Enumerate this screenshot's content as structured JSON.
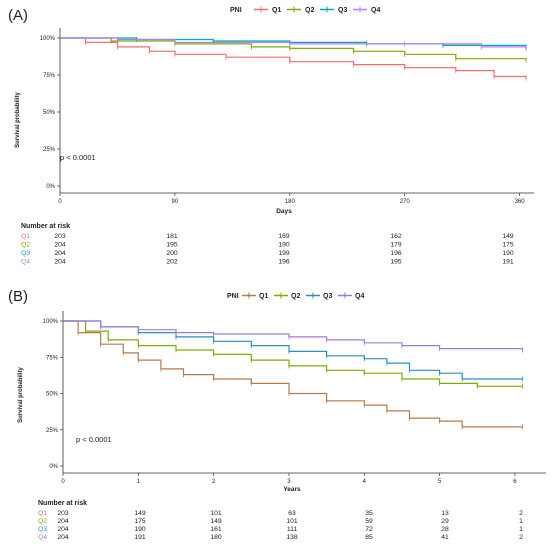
{
  "chart_data": [
    {
      "panel_label": "(A)",
      "type": "line",
      "subtype": "kaplan-meier",
      "legend_title": "PNI",
      "legend_position": "top",
      "xlabel": "Days",
      "ylabel": "Survival probability",
      "xlim": [
        0,
        365
      ],
      "ylim": [
        0,
        1
      ],
      "x_ticks": [
        "0",
        "90",
        "180",
        "270",
        "360"
      ],
      "y_ticks": [
        "0%",
        "25%",
        "50%",
        "75%",
        "100%"
      ],
      "annotation": "p < 0.0001",
      "series": [
        {
          "name": "Q1",
          "color": "#f26d6d",
          "x": [
            0,
            20,
            45,
            70,
            90,
            130,
            180,
            230,
            270,
            310,
            340,
            365
          ],
          "y": [
            1.0,
            0.97,
            0.94,
            0.91,
            0.89,
            0.87,
            0.84,
            0.82,
            0.8,
            0.78,
            0.74,
            0.73
          ]
        },
        {
          "name": "Q2",
          "color": "#7cae00",
          "x": [
            0,
            40,
            90,
            150,
            180,
            230,
            270,
            310,
            365
          ],
          "y": [
            1.0,
            0.98,
            0.96,
            0.94,
            0.93,
            0.91,
            0.89,
            0.86,
            0.85
          ]
        },
        {
          "name": "Q3",
          "color": "#00a9c0",
          "x": [
            0,
            60,
            120,
            180,
            240,
            300,
            365
          ],
          "y": [
            1.0,
            0.99,
            0.98,
            0.97,
            0.96,
            0.95,
            0.93
          ]
        },
        {
          "name": "Q4",
          "color": "#b67cf0",
          "x": [
            0,
            45,
            90,
            180,
            270,
            330,
            365
          ],
          "y": [
            1.0,
            0.99,
            0.97,
            0.96,
            0.96,
            0.94,
            0.93
          ]
        }
      ],
      "risk_table": {
        "title": "Number at risk",
        "times": [
          "0",
          "90",
          "180",
          "270",
          "360"
        ],
        "rows": [
          {
            "group": "Q1",
            "values": [
              "203",
              "181",
              "169",
              "162",
              "149"
            ]
          },
          {
            "group": "Q2",
            "values": [
              "204",
              "195",
              "190",
              "179",
              "175"
            ]
          },
          {
            "group": "Q3",
            "values": [
              "204",
              "200",
              "199",
              "196",
              "190"
            ]
          },
          {
            "group": "Q4",
            "values": [
              "204",
              "202",
              "196",
              "195",
              "191"
            ]
          }
        ]
      }
    },
    {
      "panel_label": "(B)",
      "type": "line",
      "subtype": "kaplan-meier",
      "legend_title": "PNI",
      "legend_position": "top",
      "xlabel": "Years",
      "ylabel": "Survival probability",
      "xlim": [
        0,
        6.2
      ],
      "ylim": [
        0,
        1
      ],
      "x_ticks": [
        "0",
        "1",
        "2",
        "3",
        "4",
        "5",
        "6"
      ],
      "y_ticks": [
        "0%",
        "25%",
        "50%",
        "75%",
        "100%"
      ],
      "annotation": "p < 0.0001",
      "series": [
        {
          "name": "Q1",
          "color": "#b87a4a",
          "x": [
            0,
            0.2,
            0.5,
            0.8,
            1.0,
            1.3,
            1.6,
            2.0,
            2.5,
            3.0,
            3.5,
            4.0,
            4.3,
            4.6,
            5.0,
            5.3,
            6.1
          ],
          "y": [
            1.0,
            0.92,
            0.84,
            0.78,
            0.73,
            0.67,
            0.63,
            0.6,
            0.57,
            0.5,
            0.45,
            0.42,
            0.38,
            0.33,
            0.31,
            0.27,
            0.27
          ]
        },
        {
          "name": "Q2",
          "color": "#7cae00",
          "x": [
            0,
            0.3,
            0.6,
            1.0,
            1.5,
            2.0,
            2.5,
            3.0,
            3.5,
            4.0,
            4.5,
            5.0,
            5.5,
            6.1
          ],
          "y": [
            1.0,
            0.93,
            0.87,
            0.83,
            0.8,
            0.77,
            0.73,
            0.69,
            0.66,
            0.64,
            0.6,
            0.57,
            0.55,
            0.55
          ]
        },
        {
          "name": "Q3",
          "color": "#2b8fbf",
          "x": [
            0,
            0.5,
            1.0,
            1.5,
            2.0,
            2.5,
            3.0,
            3.5,
            4.0,
            4.3,
            4.6,
            5.0,
            5.3,
            6.1
          ],
          "y": [
            1.0,
            0.96,
            0.92,
            0.89,
            0.86,
            0.83,
            0.79,
            0.76,
            0.74,
            0.71,
            0.66,
            0.64,
            0.6,
            0.6
          ]
        },
        {
          "name": "Q4",
          "color": "#a07ae0",
          "x": [
            0,
            0.5,
            1.0,
            1.5,
            2.0,
            3.0,
            3.5,
            4.0,
            4.5,
            5.0,
            6.1
          ],
          "y": [
            1.0,
            0.96,
            0.94,
            0.92,
            0.91,
            0.89,
            0.87,
            0.85,
            0.83,
            0.81,
            0.8
          ]
        }
      ],
      "risk_table": {
        "title": "Number at risk",
        "times": [
          "0",
          "1",
          "2",
          "3",
          "4",
          "5",
          "6"
        ],
        "rows": [
          {
            "group": "Q1",
            "values": [
              "203",
              "149",
              "101",
              "63",
              "35",
              "13",
              "2"
            ]
          },
          {
            "group": "Q2",
            "values": [
              "204",
              "175",
              "149",
              "101",
              "59",
              "29",
              "1"
            ]
          },
          {
            "group": "Q3",
            "values": [
              "204",
              "190",
              "161",
              "111",
              "72",
              "28",
              "1"
            ]
          },
          {
            "group": "Q4",
            "values": [
              "204",
              "191",
              "180",
              "138",
              "85",
              "41",
              "2"
            ]
          }
        ]
      }
    }
  ]
}
